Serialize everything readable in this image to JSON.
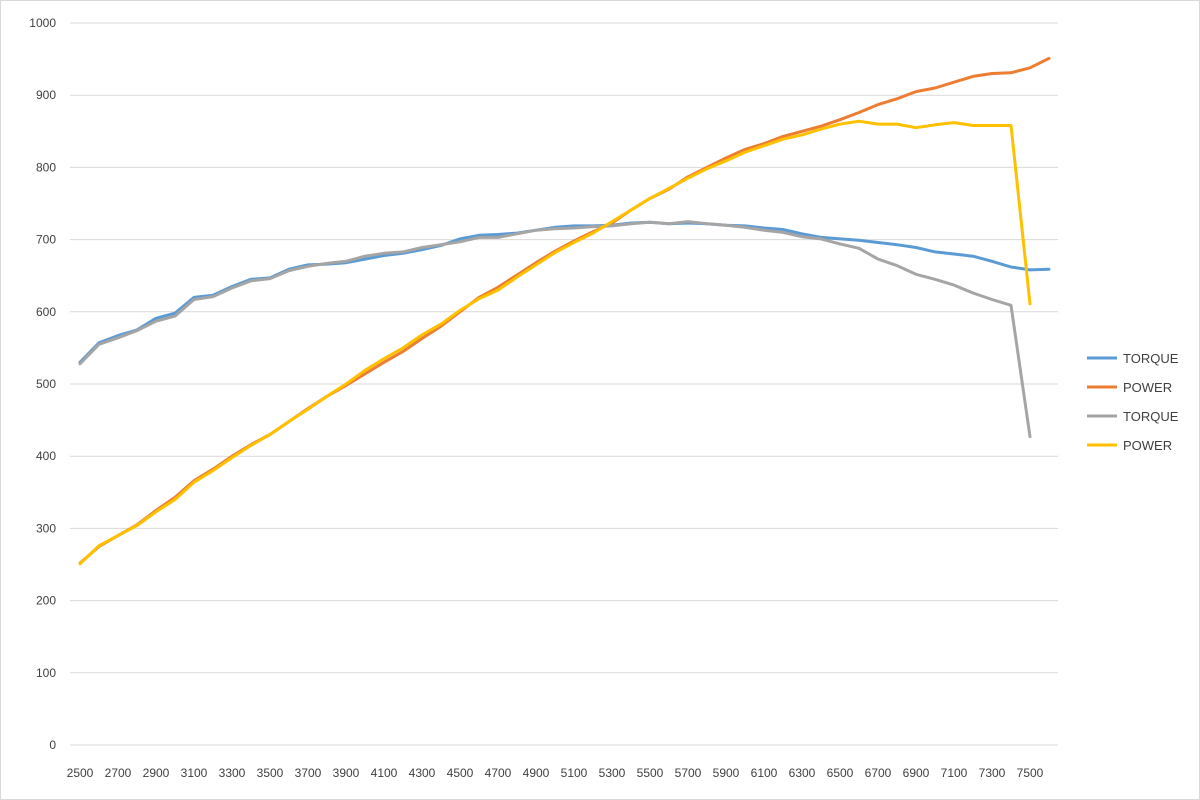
{
  "chart_data": {
    "type": "line",
    "title": "",
    "xlabel": "",
    "ylabel": "",
    "ylim": [
      0,
      1000
    ],
    "yticks": [
      0,
      100,
      200,
      300,
      400,
      500,
      600,
      700,
      800,
      900,
      1000
    ],
    "x": [
      2500,
      2600,
      2700,
      2800,
      2900,
      3000,
      3100,
      3200,
      3300,
      3400,
      3500,
      3600,
      3700,
      3800,
      3900,
      4000,
      4100,
      4200,
      4300,
      4400,
      4500,
      4600,
      4700,
      4800,
      4900,
      5000,
      5100,
      5200,
      5300,
      5400,
      5500,
      5600,
      5700,
      5800,
      5900,
      6000,
      6100,
      6200,
      6300,
      6400,
      6500,
      6600,
      6700,
      6800,
      6900,
      7000,
      7100,
      7200,
      7300,
      7400,
      7500,
      7600
    ],
    "xtick_labels": [
      "2500",
      "2700",
      "2900",
      "3100",
      "3300",
      "3500",
      "3700",
      "3900",
      "4100",
      "4300",
      "4500",
      "4700",
      "4900",
      "5100",
      "5300",
      "5500",
      "5700",
      "5900",
      "6100",
      "6300",
      "6500",
      "6700",
      "6900",
      "7100",
      "7300",
      "7500"
    ],
    "grid": true,
    "legend_position": "right",
    "series": [
      {
        "name": "TORQUE",
        "color": "#5b9bd5",
        "values": [
          530,
          557,
          567,
          575,
          591,
          598,
          620,
          623,
          635,
          645,
          647,
          659,
          665,
          666,
          668,
          673,
          678,
          681,
          686,
          692,
          701,
          706,
          707,
          709,
          713,
          717,
          719,
          719,
          720,
          723,
          724,
          722,
          723,
          722,
          720,
          719,
          716,
          714,
          708,
          703,
          701,
          699,
          696,
          693,
          689,
          683,
          680,
          677,
          670,
          662,
          658,
          659
        ]
      },
      {
        "name": "POWER",
        "color": "#ed7d31",
        "values": [
          252,
          275,
          290,
          305,
          325,
          343,
          366,
          382,
          400,
          416,
          430,
          448,
          466,
          483,
          498,
          514,
          530,
          545,
          563,
          580,
          600,
          620,
          634,
          651,
          668,
          684,
          698,
          711,
          723,
          741,
          757,
          770,
          787,
          800,
          813,
          825,
          833,
          843,
          850,
          857,
          866,
          876,
          887,
          895,
          905,
          910,
          918,
          926,
          930,
          931,
          938,
          951
        ]
      },
      {
        "name": "TORQUE",
        "color": "#a5a5a5",
        "values": [
          528,
          555,
          564,
          574,
          587,
          594,
          617,
          621,
          633,
          643,
          646,
          657,
          663,
          667,
          670,
          677,
          681,
          683,
          689,
          693,
          697,
          703,
          703,
          708,
          713,
          715,
          716,
          718,
          719,
          722,
          724,
          722,
          725,
          722,
          720,
          717,
          713,
          710,
          704,
          701,
          694,
          688,
          673,
          664,
          652,
          645,
          637,
          626,
          617,
          609,
          427,
          null
        ]
      },
      {
        "name": "POWER",
        "color": "#ffc000",
        "values": [
          251,
          276,
          290,
          304,
          323,
          340,
          364,
          380,
          398,
          415,
          430,
          448,
          465,
          483,
          500,
          519,
          535,
          550,
          568,
          583,
          602,
          618,
          630,
          648,
          665,
          682,
          696,
          709,
          725,
          741,
          757,
          771,
          785,
          798,
          809,
          821,
          830,
          839,
          845,
          853,
          860,
          864,
          860,
          860,
          855,
          859,
          862,
          858,
          858,
          858,
          611,
          null
        ]
      }
    ]
  }
}
